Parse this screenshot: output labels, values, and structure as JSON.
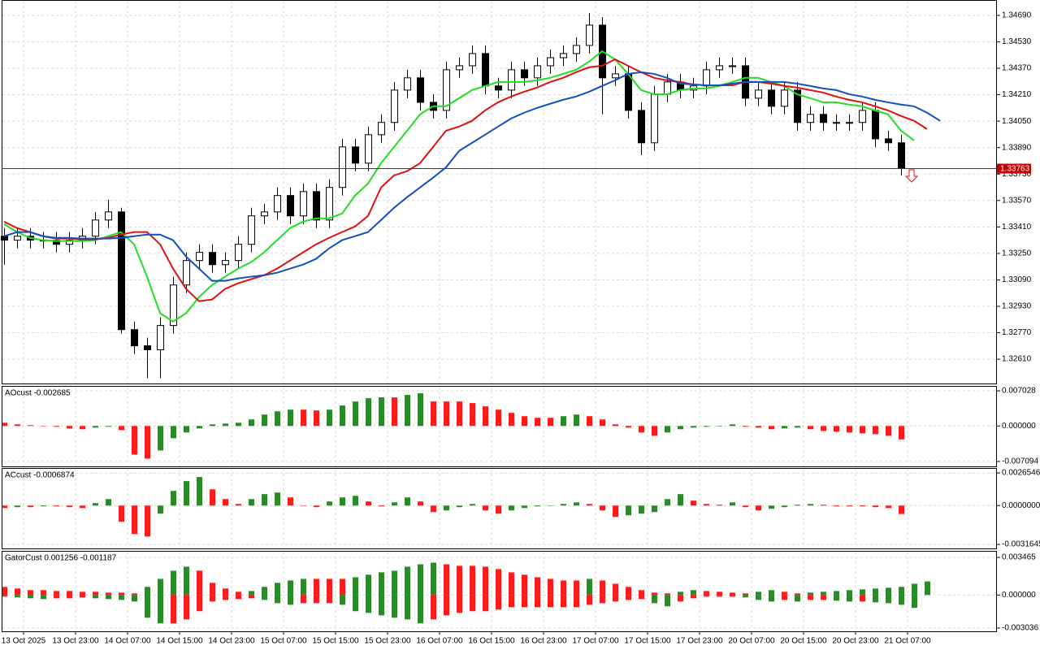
{
  "chart_data": [
    {
      "type": "candlestick",
      "categories": [
        null,
        "13 Oct 2025",
        null,
        null,
        null,
        "13 Oct 23:00",
        null,
        null,
        null,
        "14 Oct 07:00",
        null,
        null,
        null,
        "14 Oct 15:00",
        null,
        null,
        null,
        "14 Oct 23:00",
        null,
        null,
        null,
        "15 Oct 07:00",
        null,
        null,
        null,
        "15 Oct 15:00",
        null,
        null,
        null,
        "15 Oct 23:00",
        null,
        null,
        null,
        "16 Oct 07:00",
        null,
        null,
        null,
        "16 Oct 15:00",
        null,
        null,
        null,
        "16 Oct 23:00",
        null,
        null,
        null,
        "17 Oct 07:00",
        null,
        null,
        null,
        "17 Oct 15:00",
        null,
        null,
        null,
        "17 Oct 23:00",
        null,
        null,
        null,
        "20 Oct 07:00",
        null,
        null,
        null,
        "20 Oct 15:00",
        null,
        null,
        null,
        "20 Oct 23:00",
        null,
        null,
        null,
        "21 Oct 07:00",
        null,
        null,
        null,
        null
      ],
      "open": [
        1.33354,
        1.3333,
        1.33354,
        1.3333,
        1.3333,
        1.33305,
        1.3333,
        1.33354,
        1.33452,
        1.33501,
        1.32789,
        1.32691,
        1.32667,
        1.32814,
        1.33059,
        1.33207,
        1.33256,
        1.33182,
        1.33207,
        1.33305,
        1.33477,
        1.33501,
        1.336,
        1.33477,
        1.33624,
        1.33452,
        1.33649,
        1.33894,
        1.33796,
        1.33968,
        1.34042,
        1.34238,
        1.34312,
        1.34164,
        1.34115,
        1.34361,
        1.34385,
        1.34459,
        1.34263,
        1.34238,
        1.34361,
        1.34312,
        1.34385,
        1.34434,
        1.34459,
        1.34508,
        1.34631,
        1.34312,
        1.34336,
        1.34115,
        1.33919,
        1.34213,
        1.34287,
        1.34238,
        1.34263,
        1.34361,
        1.34385,
        1.34385,
        1.34189,
        1.34238,
        1.3414,
        1.34238,
        1.34042,
        1.34091,
        1.34042,
        1.34042,
        1.34042,
        1.34115,
        1.33943,
        1.33919,
        null,
        null,
        null,
        null
      ],
      "high": [
        1.33403,
        1.33403,
        1.33403,
        1.33379,
        1.33379,
        1.33379,
        1.33403,
        1.33501,
        1.33575,
        1.33526,
        1.32838,
        1.3274,
        1.32863,
        1.33109,
        1.33256,
        1.33305,
        1.33305,
        1.33256,
        1.33354,
        1.33526,
        1.3355,
        1.33649,
        1.33649,
        1.33673,
        1.33673,
        1.33698,
        1.33943,
        1.33943,
        1.34017,
        1.34091,
        1.34287,
        1.34361,
        1.34361,
        1.34213,
        1.3441,
        1.34434,
        1.34508,
        1.34508,
        1.34312,
        1.3441,
        1.3441,
        1.34434,
        1.34483,
        1.34508,
        1.34557,
        1.34704,
        1.3468,
        1.34385,
        1.34385,
        1.34164,
        1.34263,
        1.34336,
        1.34336,
        1.34312,
        1.3441,
        1.34434,
        1.34434,
        1.34434,
        1.34287,
        1.34287,
        1.34287,
        1.34287,
        1.3414,
        1.3414,
        1.34091,
        1.34091,
        1.34164,
        1.34164,
        1.33992,
        1.33968,
        null,
        null,
        null,
        null
      ],
      "low": [
        1.33182,
        1.3328,
        1.3328,
        1.3328,
        1.33256,
        1.33256,
        1.3328,
        1.33305,
        1.33403,
        1.32765,
        1.32642,
        1.32495,
        1.32495,
        1.32765,
        1.3301,
        1.33158,
        1.33133,
        1.33133,
        1.33158,
        1.33256,
        1.33428,
        1.33452,
        1.33428,
        1.33428,
        1.33403,
        1.33403,
        1.336,
        1.33747,
        1.33747,
        1.33919,
        1.33992,
        1.34189,
        1.34115,
        1.34066,
        1.34066,
        1.34312,
        1.34336,
        1.34213,
        1.34189,
        1.34189,
        1.34263,
        1.34263,
        1.34336,
        1.34385,
        1.3441,
        1.34459,
        1.34091,
        1.34263,
        1.34066,
        1.33845,
        1.3387,
        1.34164,
        1.34189,
        1.34189,
        1.34213,
        1.34312,
        1.34336,
        1.3414,
        1.3414,
        1.34091,
        1.34091,
        1.33992,
        1.33992,
        1.33992,
        1.33992,
        1.33992,
        1.33992,
        1.33894,
        1.3387,
        1.33722,
        null,
        null,
        null,
        null
      ],
      "close": [
        1.3333,
        1.33354,
        1.3333,
        1.3333,
        1.33305,
        1.3333,
        1.33354,
        1.33452,
        1.33501,
        1.32789,
        1.32691,
        1.32667,
        1.32814,
        1.33059,
        1.33207,
        1.33256,
        1.33182,
        1.33207,
        1.33305,
        1.33477,
        1.33501,
        1.336,
        1.33477,
        1.33624,
        1.33452,
        1.33649,
        1.33894,
        1.33796,
        1.33968,
        1.34042,
        1.34238,
        1.34312,
        1.34164,
        1.34115,
        1.34361,
        1.34385,
        1.34459,
        1.34263,
        1.34238,
        1.34361,
        1.34312,
        1.34385,
        1.34434,
        1.34459,
        1.34508,
        1.34631,
        1.34312,
        1.34336,
        1.34115,
        1.33919,
        1.34213,
        1.34287,
        1.34238,
        1.34263,
        1.34361,
        1.34385,
        1.34385,
        1.34189,
        1.34238,
        1.3414,
        1.34238,
        1.34042,
        1.34091,
        1.34042,
        1.34042,
        1.34042,
        1.34115,
        1.33943,
        1.33919,
        1.33763,
        null,
        null,
        null,
        null
      ],
      "bull_color": "#ffffff",
      "bear_color": "#000000",
      "lines": [
        {
          "color": "#22dd22",
          "values": [
            1.33428,
            1.33379,
            1.33344,
            1.3333,
            1.33325,
            1.33325,
            1.33325,
            1.3333,
            1.33354,
            1.33379,
            1.33305,
            1.33109,
            1.32888,
            1.32838,
            1.32888,
            1.32986,
            1.33059,
            1.33109,
            1.33158,
            1.33197,
            1.33256,
            1.3333,
            1.33403,
            1.33442,
            1.33462,
            1.33462,
            1.33491,
            1.336,
            1.33673,
            1.33796,
            1.33894,
            1.33992,
            1.34091,
            1.3414,
            1.3414,
            1.34189,
            1.34238,
            1.34263,
            1.34287,
            1.34287,
            1.34287,
            1.34297,
            1.34312,
            1.34336,
            1.34361,
            1.3441,
            1.34473,
            1.34424,
            1.34336,
            1.34238,
            1.34213,
            1.34213,
            1.34238,
            1.34248,
            1.34248,
            1.34263,
            1.34287,
            1.34312,
            1.34312,
            1.34287,
            1.34263,
            1.34213,
            1.34189,
            1.34164,
            1.34164,
            1.3415,
            1.3414,
            1.34115,
            1.34091,
            1.33992,
            1.33933,
            null,
            null,
            null
          ]
        },
        {
          "color": "#e01010",
          "values": [
            1.33442,
            1.33403,
            1.33379,
            1.33354,
            1.3334,
            1.3334,
            1.33335,
            1.33335,
            1.33344,
            1.33364,
            1.33379,
            1.33379,
            1.33305,
            1.33158,
            1.33035,
            1.32961,
            1.32971,
            1.33035,
            1.33069,
            1.33094,
            1.33118,
            1.33158,
            1.33207,
            1.33256,
            1.33305,
            1.33344,
            1.33379,
            1.33413,
            1.33477,
            1.33649,
            1.33722,
            1.33747,
            1.33796,
            1.33894,
            1.33992,
            1.34017,
            1.34052,
            1.34115,
            1.34164,
            1.34199,
            1.34228,
            1.34253,
            1.34287,
            1.34312,
            1.34346,
            1.34376,
            1.34385,
            1.34424,
            1.34385,
            1.34346,
            1.34312,
            1.34297,
            1.34287,
            1.34272,
            1.34267,
            1.34267,
            1.34267,
            1.34287,
            1.34287,
            1.34277,
            1.34263,
            1.34253,
            1.34238,
            1.34223,
            1.34199,
            1.34179,
            1.34164,
            1.3414,
            1.34115,
            1.34081,
            1.34052,
            1.34002,
            null,
            null
          ]
        },
        {
          "color": "#1050c0",
          "values": [
            1.33354,
            1.33379,
            1.33379,
            1.33354,
            1.33344,
            1.33344,
            1.3334,
            1.3334,
            1.3334,
            1.33344,
            1.33354,
            1.33364,
            1.33364,
            1.3333,
            1.33231,
            1.33158,
            1.33084,
            1.33084,
            1.33099,
            1.33109,
            1.33118,
            1.33133,
            1.33158,
            1.33182,
            1.33217,
            1.3328,
            1.3333,
            1.33354,
            1.33379,
            1.33452,
            1.33526,
            1.3359,
            1.33649,
            1.33708,
            1.33771,
            1.3387,
            1.33919,
            1.33968,
            1.34017,
            1.34066,
            1.34101,
            1.3413,
            1.34155,
            1.34179,
            1.34199,
            1.34228,
            1.34263,
            1.34297,
            1.34336,
            1.34346,
            1.34336,
            1.34312,
            1.34277,
            1.34272,
            1.34267,
            1.34267,
            1.34277,
            1.34287,
            1.34287,
            1.34287,
            1.34287,
            1.34277,
            1.34263,
            1.34248,
            1.34238,
            1.34213,
            1.34199,
            1.34179,
            1.34164,
            1.3415,
            1.3414,
            1.34101,
            1.34052,
            null
          ]
        }
      ],
      "current_price": 1.33763,
      "current_price_color": "#c80000",
      "ylim": [
        1.32463,
        1.34778
      ],
      "yticks": [
        {
          "value": 1.3469,
          "label": "1.34690"
        },
        {
          "value": 1.3453,
          "label": "1.34530"
        },
        {
          "value": 1.3437,
          "label": "1.34370"
        },
        {
          "value": 1.3421,
          "label": "1.34210"
        },
        {
          "value": 1.3405,
          "label": "1.34050"
        },
        {
          "value": 1.3389,
          "label": "1.33890"
        },
        {
          "value": 1.3373,
          "label": "1.33730"
        },
        {
          "value": 1.3357,
          "label": "1.33570"
        },
        {
          "value": 1.3341,
          "label": "1.33410"
        },
        {
          "value": 1.3325,
          "label": "1.33250"
        },
        {
          "value": 1.3309,
          "label": "1.33090"
        },
        {
          "value": 1.3293,
          "label": "1.32930"
        },
        {
          "value": 1.3277,
          "label": "1.32770"
        },
        {
          "value": 1.3261,
          "label": "1.32610"
        }
      ],
      "grid": true
    },
    {
      "type": "bar",
      "title": "AOcust -0.002685",
      "up_color": "#2a8a2a",
      "down_color": "#ff1a1a",
      "values": [
        0.00065,
        0.00033,
        0.00016,
        0,
        -0.00016,
        -0.00049,
        -0.00065,
        -0.00033,
        -0.00016,
        -0.00082,
        -0.00572,
        -0.00654,
        -0.0049,
        -0.00245,
        -0.00131,
        -0.00049,
        0.00033,
        0.00049,
        0.00065,
        0.00131,
        0.00229,
        0.00294,
        0.00327,
        0.00327,
        0.00311,
        0.00327,
        0.00409,
        0.0049,
        0.00556,
        0.00572,
        0.00572,
        0.00621,
        0.00654,
        0.0049,
        0.0049,
        0.0049,
        0.00458,
        0.00392,
        0.00327,
        0.00262,
        0.00196,
        0.00164,
        0.00164,
        0.00196,
        0.00229,
        0.00196,
        0.00131,
        0.00033,
        -0.00033,
        -0.00131,
        -0.00196,
        -0.00131,
        -0.00065,
        -0.00033,
        -0.00016,
        0,
        0.00033,
        -0.00016,
        -0.00033,
        -0.00065,
        -0.00049,
        -0.00033,
        -0.00065,
        -0.00098,
        -0.00114,
        -0.00131,
        -0.00147,
        -0.00164,
        -0.00196,
        -0.002685,
        null,
        null,
        null,
        null
      ],
      "ylim": [
        -0.00808,
        0.00785
      ],
      "yticks": [
        0.007028,
        {
          "value": 0,
          "label": "0.000000"
        },
        -0.007094
      ],
      "grid": true
    },
    {
      "type": "bar",
      "title": "ACcust -0.0006874",
      "up_color": "#2a8a2a",
      "down_color": "#ff1a1a",
      "values": [
        -0.0002,
        -0.00013,
        -0.00013,
        -7e-05,
        -7e-05,
        -0.00013,
        -0.0002,
        0.0002,
        0.00053,
        -0.00132,
        -0.00232,
        -0.00252,
        -0.00066,
        0.00119,
        0.00199,
        0.00232,
        0.00132,
        0.00053,
        0.00013,
        0.00053,
        0.00093,
        0.00106,
        0.00066,
        0,
        -0.00013,
        0.00033,
        0.00066,
        0.00079,
        0.00033,
        -7e-05,
        0.00026,
        0.00066,
        0.00033,
        -0.00053,
        -0.0004,
        -0.00013,
        0.00013,
        -0.0004,
        -0.00066,
        -0.0004,
        -0.0002,
        -7e-05,
        0,
        0.00013,
        0.00026,
        0.00013,
        -0.0004,
        -0.00093,
        -0.00079,
        -0.00066,
        -0.00053,
        0.00053,
        0.00093,
        0.0004,
        0.00013,
        7e-05,
        0.00026,
        -0.00013,
        -0.0004,
        -0.00026,
        -0.00013,
        7e-05,
        0.00013,
        7e-05,
        -7e-05,
        -7e-05,
        -7e-05,
        -0.00013,
        -0.0002,
        -0.0006874,
        null,
        null,
        null,
        null
      ],
      "ylim": [
        -0.00349,
        0.00299
      ],
      "yticks": [
        0.0026546,
        {
          "value": 0,
          "label": "0.0000000"
        },
        -0.0031645
      ],
      "grid": true
    },
    {
      "type": "gator",
      "title": "GatorCust 0.001256 -0.001187",
      "up_color": "#2a8a2a",
      "down_color": "#ff1a1a",
      "series": [
        {
          "values": [
            0.00075,
            0.0006,
            0.00045,
            0.00045,
            0.00037,
            0.00037,
            0.0003,
            0.0003,
            0.00022,
            0.00022,
            0.00015,
            0.00075,
            0.00149,
            0.00224,
            0.00261,
            0.00224,
            0.00112,
            0.0006,
            0.0003,
            0.00037,
            0.00075,
            0.00112,
            0.00134,
            0.00149,
            0.00149,
            0.00149,
            0.00149,
            0.00164,
            0.00187,
            0.00209,
            0.00224,
            0.00261,
            0.00283,
            0.00298,
            0.00283,
            0.00269,
            0.00269,
            0.00261,
            0.00239,
            0.00209,
            0.00187,
            0.00164,
            0.00149,
            0.00134,
            0.00134,
            0.00149,
            0.00134,
            0.00104,
            0.00075,
            0.00045,
            0.00022,
            0.00015,
            0.0003,
            0.00045,
            0.00037,
            0.0003,
            0.00022,
            0.00015,
            0.0003,
            0.00045,
            0.0003,
            0.00015,
            0.00022,
            0.0003,
            0.00037,
            0.00045,
            0.00052,
            0.0006,
            0.00067,
            0.00075,
            0.00104,
            0.001256,
            null,
            null
          ]
        },
        {
          "values": [
            -0.00015,
            -0.00022,
            -0.0003,
            -0.00037,
            -0.0003,
            -0.0003,
            -0.00022,
            -0.0003,
            -0.00037,
            -0.00045,
            -0.0006,
            -0.00209,
            -0.00261,
            -0.00261,
            -0.00224,
            -0.00149,
            -0.0006,
            -0.00045,
            -0.00037,
            -0.0003,
            -0.00045,
            -0.00075,
            -0.0009,
            -0.00075,
            -0.00075,
            -0.00075,
            -0.0009,
            -0.00149,
            -0.00164,
            -0.00187,
            -0.00209,
            -0.00224,
            -0.00261,
            -0.00224,
            -0.00187,
            -0.00164,
            -0.00149,
            -0.00149,
            -0.00134,
            -0.00112,
            -0.00112,
            -0.00112,
            -0.00112,
            -0.00112,
            -0.00112,
            -0.0009,
            -0.00075,
            -0.0006,
            -0.00045,
            -0.00037,
            -0.00075,
            -0.00104,
            -0.0006,
            -0.0003,
            -0.00015,
            -0.00015,
            -0.00015,
            -0.00022,
            -0.00045,
            -0.0006,
            -0.00045,
            -0.0006,
            -0.00045,
            -0.00045,
            -0.00052,
            -0.0006,
            -0.0006,
            -0.00067,
            -0.00075,
            -0.0009,
            -0.001187,
            null,
            null,
            null
          ]
        }
      ],
      "ylim": [
        -0.00334,
        0.00399
      ],
      "yticks": [
        0.003465,
        {
          "value": 0,
          "label": "0.000000"
        },
        -0.003036
      ],
      "grid": true
    }
  ]
}
